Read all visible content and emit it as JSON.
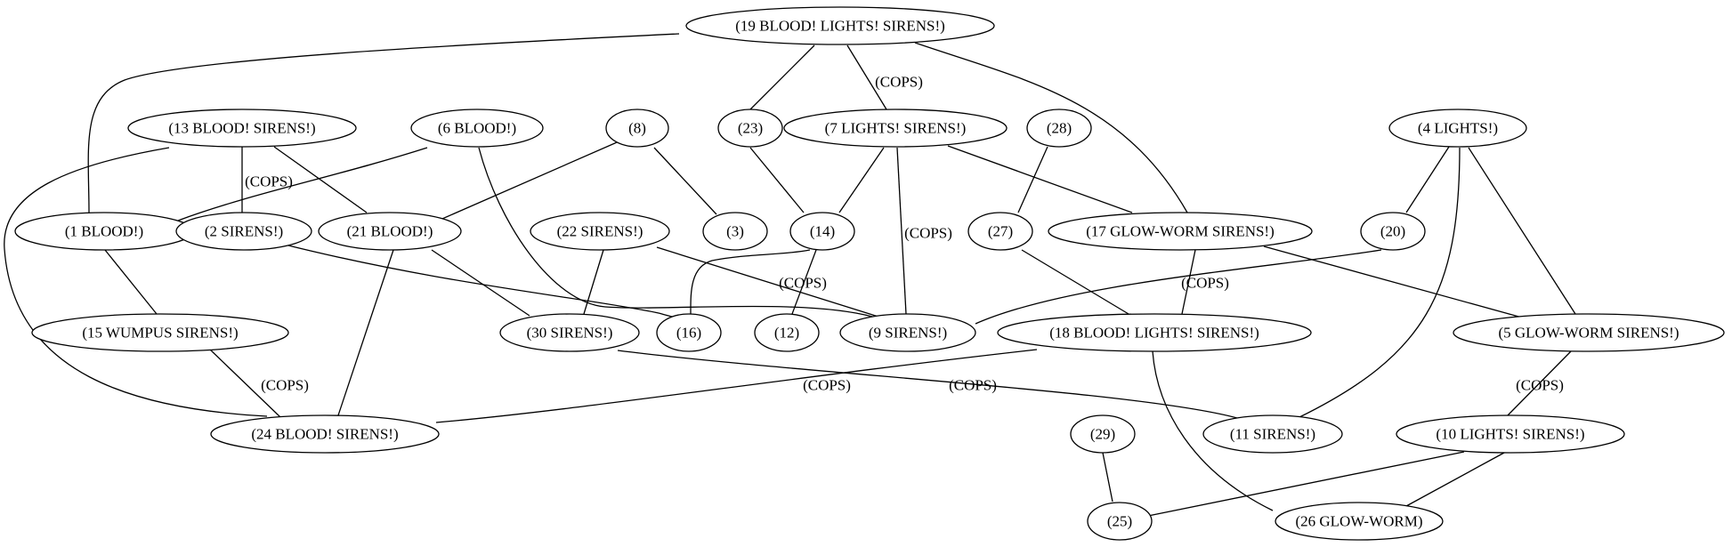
{
  "nodes": [
    {
      "id": "n19",
      "label": "(19 BLOOD! LIGHTS! SIRENS!)"
    },
    {
      "id": "n13",
      "label": "(13 BLOOD! SIRENS!)"
    },
    {
      "id": "n6",
      "label": "(6 BLOOD!)"
    },
    {
      "id": "n8",
      "label": "(8)"
    },
    {
      "id": "n23",
      "label": "(23)"
    },
    {
      "id": "n7",
      "label": "(7 LIGHTS! SIRENS!)"
    },
    {
      "id": "n28",
      "label": "(28)"
    },
    {
      "id": "n4",
      "label": "(4 LIGHTS!)"
    },
    {
      "id": "n1",
      "label": "(1 BLOOD!)"
    },
    {
      "id": "n2",
      "label": "(2 SIRENS!)"
    },
    {
      "id": "n21",
      "label": "(21 BLOOD!)"
    },
    {
      "id": "n22",
      "label": "(22 SIRENS!)"
    },
    {
      "id": "n3",
      "label": "(3)"
    },
    {
      "id": "n14",
      "label": "(14)"
    },
    {
      "id": "n27",
      "label": "(27)"
    },
    {
      "id": "n17",
      "label": "(17 GLOW-WORM SIRENS!)"
    },
    {
      "id": "n20",
      "label": "(20)"
    },
    {
      "id": "n15",
      "label": "(15 WUMPUS SIRENS!)"
    },
    {
      "id": "n30",
      "label": "(30 SIRENS!)"
    },
    {
      "id": "n16",
      "label": "(16)"
    },
    {
      "id": "n12",
      "label": "(12)"
    },
    {
      "id": "n9",
      "label": "(9 SIRENS!)"
    },
    {
      "id": "n18",
      "label": "(18 BLOOD! LIGHTS! SIRENS!)"
    },
    {
      "id": "n5",
      "label": "(5 GLOW-WORM SIRENS!)"
    },
    {
      "id": "n24",
      "label": "(24 BLOOD! SIRENS!)"
    },
    {
      "id": "n29",
      "label": "(29)"
    },
    {
      "id": "n11",
      "label": "(11 SIRENS!)"
    },
    {
      "id": "n10",
      "label": "(10 LIGHTS! SIRENS!)"
    },
    {
      "id": "n25",
      "label": "(25)"
    },
    {
      "id": "n26",
      "label": "(26 GLOW-WORM)"
    }
  ],
  "edges": [
    {
      "from": "n19",
      "to": "n1",
      "label": ""
    },
    {
      "from": "n19",
      "to": "n23",
      "label": ""
    },
    {
      "from": "n19",
      "to": "n7",
      "label": "(COPS)"
    },
    {
      "from": "n19",
      "to": "n17",
      "label": ""
    },
    {
      "from": "n13",
      "to": "n2",
      "label": "(COPS)"
    },
    {
      "from": "n13",
      "to": "n21",
      "label": ""
    },
    {
      "from": "n13",
      "to": "n24",
      "label": ""
    },
    {
      "from": "n6",
      "to": "n1",
      "label": ""
    },
    {
      "from": "n6",
      "to": "n9",
      "label": ""
    },
    {
      "from": "n8",
      "to": "n21",
      "label": ""
    },
    {
      "from": "n8",
      "to": "n3",
      "label": ""
    },
    {
      "from": "n23",
      "to": "n14",
      "label": ""
    },
    {
      "from": "n7",
      "to": "n14",
      "label": ""
    },
    {
      "from": "n7",
      "to": "n9",
      "label": "(COPS)"
    },
    {
      "from": "n7",
      "to": "n17",
      "label": ""
    },
    {
      "from": "n28",
      "to": "n27",
      "label": ""
    },
    {
      "from": "n4",
      "to": "n20",
      "label": ""
    },
    {
      "from": "n4",
      "to": "n11",
      "label": ""
    },
    {
      "from": "n4",
      "to": "n5",
      "label": ""
    },
    {
      "from": "n1",
      "to": "n15",
      "label": ""
    },
    {
      "from": "n2",
      "to": "n16",
      "label": ""
    },
    {
      "from": "n21",
      "to": "n30",
      "label": ""
    },
    {
      "from": "n21",
      "to": "n24",
      "label": ""
    },
    {
      "from": "n22",
      "to": "n30",
      "label": ""
    },
    {
      "from": "n22",
      "to": "n9",
      "label": "(COPS)"
    },
    {
      "from": "n14",
      "to": "n16",
      "label": ""
    },
    {
      "from": "n14",
      "to": "n12",
      "label": ""
    },
    {
      "from": "n27",
      "to": "n18",
      "label": ""
    },
    {
      "from": "n17",
      "to": "n18",
      "label": "(COPS)"
    },
    {
      "from": "n17",
      "to": "n5",
      "label": ""
    },
    {
      "from": "n20",
      "to": "n9",
      "label": ""
    },
    {
      "from": "n15",
      "to": "n24",
      "label": "(COPS)"
    },
    {
      "from": "n30",
      "to": "n11",
      "label": "(COPS)"
    },
    {
      "from": "n18",
      "to": "n24",
      "label": "(COPS)"
    },
    {
      "from": "n18",
      "to": "n26",
      "label": ""
    },
    {
      "from": "n5",
      "to": "n10",
      "label": "(COPS)"
    },
    {
      "from": "n29",
      "to": "n25",
      "label": ""
    },
    {
      "from": "n10",
      "to": "n25",
      "label": ""
    },
    {
      "from": "n10",
      "to": "n26",
      "label": ""
    }
  ]
}
